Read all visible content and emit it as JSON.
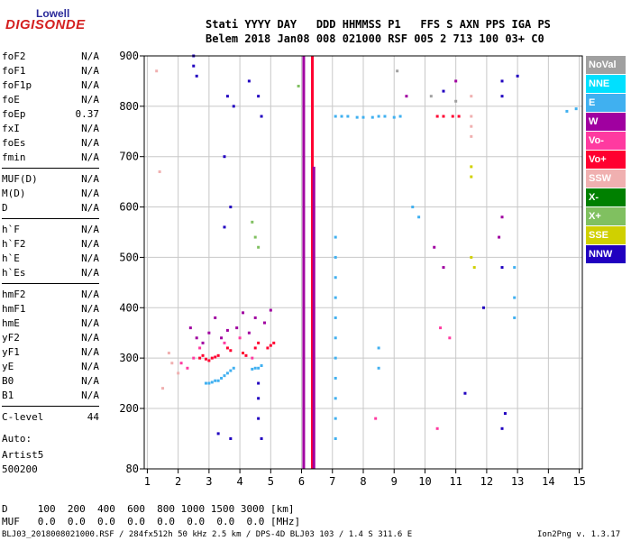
{
  "logo": {
    "line1": "Lowell",
    "line2": "DIGISONDE"
  },
  "header": {
    "line1": "Stati YYYY DAY   DDD HHMMSS P1   FFS S AXN PPS IGA PS",
    "line2": "Belem 2018 Jan08 008 021000 RSF 005 2 713 100 03+ C0"
  },
  "params": [
    {
      "name": "foF2",
      "value": "N/A"
    },
    {
      "name": "foF1",
      "value": "N/A"
    },
    {
      "name": "foF1p",
      "value": "N/A"
    },
    {
      "name": "foE",
      "value": "N/A"
    },
    {
      "name": "foEp",
      "value": "0.37"
    },
    {
      "name": "fxI",
      "value": "N/A"
    },
    {
      "name": "foEs",
      "value": "N/A"
    },
    {
      "name": "fmin",
      "value": "N/A"
    },
    {
      "name": "MUF(D)",
      "value": "N/A"
    },
    {
      "name": "M(D)",
      "value": "N/A"
    },
    {
      "name": "D",
      "value": "N/A"
    },
    {
      "name": "h`F",
      "value": "N/A"
    },
    {
      "name": "h`F2",
      "value": "N/A"
    },
    {
      "name": "h`E",
      "value": "N/A"
    },
    {
      "name": "h`Es",
      "value": "N/A"
    },
    {
      "name": "hmF2",
      "value": "N/A"
    },
    {
      "name": "hmF1",
      "value": "N/A"
    },
    {
      "name": "hmE",
      "value": "N/A"
    },
    {
      "name": "yF2",
      "value": "N/A"
    },
    {
      "name": "yF1",
      "value": "N/A"
    },
    {
      "name": "yE",
      "value": "N/A"
    },
    {
      "name": "B0",
      "value": "N/A"
    },
    {
      "name": "B1",
      "value": "N/A"
    },
    {
      "name": "C-level",
      "value": "44"
    }
  ],
  "auto": {
    "line1": "Auto:",
    "line2": "Artist5",
    "line3": "500200"
  },
  "legend": [
    {
      "label": "NoVal",
      "color": "#a0a0a0"
    },
    {
      "label": "NNE",
      "color": "#00e0ff"
    },
    {
      "label": "E",
      "color": "#40b0f0"
    },
    {
      "label": "W",
      "color": "#a000a0"
    },
    {
      "label": "Vo-",
      "color": "#ff3aa0"
    },
    {
      "label": "Vo+",
      "color": "#ff0030"
    },
    {
      "label": "SSW",
      "color": "#f0b0b0"
    },
    {
      "label": "X-",
      "color": "#008000"
    },
    {
      "label": "X+",
      "color": "#80c060"
    },
    {
      "label": "SSE",
      "color": "#d0d000"
    },
    {
      "label": "NNW",
      "color": "#2000c0"
    }
  ],
  "footer": {
    "d_row": "D     100  200  400  600  800 1000 1500 3000 [km]",
    "muf_row": "MUF   0.0  0.0  0.0  0.0  0.0  0.0  0.0  0.0 [MHz]",
    "info": "BLJ03_2018008021000.RSF / 284fx512h 50 kHz 2.5 km / DPS-4D BLJ03 103 / 1.4 S 311.6 E",
    "version": "Ion2Png v. 1.3.17"
  },
  "chart_data": {
    "type": "scatter",
    "xlabel": "",
    "ylabel": "",
    "x_ticks": [
      "1",
      "2",
      "3",
      "4",
      "5",
      "6",
      "7",
      "8",
      "9",
      "10",
      "11",
      "12",
      "13",
      "14",
      "15"
    ],
    "y_ticks": [
      "80",
      "200",
      "300",
      "400",
      "500",
      "600",
      "700",
      "800",
      "900"
    ],
    "xlim": [
      0.9,
      15.1
    ],
    "ylim": [
      80,
      900
    ],
    "grid": true,
    "lines": [
      {
        "name": "W",
        "x": 6.07,
        "y_from": 80,
        "y_to": 900
      },
      {
        "name": "Vo+",
        "x": 6.35,
        "y_from": 80,
        "y_to": 900
      },
      {
        "name": "W",
        "x": 6.4,
        "y_from": 80,
        "y_to": 680
      }
    ],
    "series": [
      {
        "name": "E",
        "points": [
          [
            2.9,
            250
          ],
          [
            3.0,
            250
          ],
          [
            3.1,
            252
          ],
          [
            3.2,
            255
          ],
          [
            3.3,
            255
          ],
          [
            3.4,
            260
          ],
          [
            3.5,
            265
          ],
          [
            3.6,
            270
          ],
          [
            3.7,
            275
          ],
          [
            3.8,
            280
          ],
          [
            4.4,
            278
          ],
          [
            4.5,
            280
          ],
          [
            4.6,
            280
          ],
          [
            4.7,
            285
          ],
          [
            7.1,
            780
          ],
          [
            7.3,
            780
          ],
          [
            7.5,
            780
          ],
          [
            7.8,
            778
          ],
          [
            8.0,
            778
          ],
          [
            8.3,
            778
          ],
          [
            8.5,
            780
          ],
          [
            8.7,
            780
          ],
          [
            9.0,
            778
          ],
          [
            9.2,
            780
          ],
          [
            14.6,
            790
          ],
          [
            14.9,
            795
          ],
          [
            7.1,
            540
          ],
          [
            7.1,
            500
          ],
          [
            7.1,
            460
          ],
          [
            7.1,
            420
          ],
          [
            7.1,
            380
          ],
          [
            7.1,
            340
          ],
          [
            7.1,
            300
          ],
          [
            7.1,
            260
          ],
          [
            7.1,
            220
          ],
          [
            7.1,
            180
          ],
          [
            7.1,
            140
          ],
          [
            12.9,
            480
          ],
          [
            12.9,
            420
          ],
          [
            12.9,
            380
          ],
          [
            8.5,
            320
          ],
          [
            8.5,
            280
          ],
          [
            9.6,
            600
          ],
          [
            9.8,
            580
          ]
        ]
      },
      {
        "name": "Vo+",
        "points": [
          [
            2.7,
            300
          ],
          [
            2.8,
            305
          ],
          [
            2.9,
            298
          ],
          [
            3.0,
            295
          ],
          [
            3.1,
            300
          ],
          [
            3.2,
            302
          ],
          [
            3.3,
            305
          ],
          [
            3.6,
            320
          ],
          [
            3.7,
            315
          ],
          [
            4.1,
            310
          ],
          [
            4.2,
            305
          ],
          [
            4.5,
            320
          ],
          [
            4.6,
            330
          ],
          [
            4.9,
            320
          ],
          [
            5.0,
            325
          ],
          [
            5.1,
            330
          ],
          [
            10.4,
            780
          ],
          [
            10.6,
            780
          ],
          [
            10.9,
            780
          ],
          [
            11.1,
            780
          ]
        ]
      },
      {
        "name": "W",
        "points": [
          [
            2.4,
            360
          ],
          [
            2.6,
            340
          ],
          [
            2.8,
            330
          ],
          [
            3.0,
            350
          ],
          [
            3.2,
            380
          ],
          [
            3.4,
            340
          ],
          [
            3.6,
            355
          ],
          [
            3.9,
            360
          ],
          [
            4.1,
            390
          ],
          [
            4.3,
            350
          ],
          [
            4.5,
            380
          ],
          [
            4.8,
            370
          ],
          [
            5.0,
            395
          ],
          [
            10.3,
            520
          ],
          [
            10.6,
            480
          ],
          [
            9.4,
            820
          ],
          [
            11.0,
            850
          ],
          [
            12.4,
            540
          ],
          [
            12.5,
            580
          ]
        ]
      },
      {
        "name": "Vo-",
        "points": [
          [
            2.1,
            290
          ],
          [
            2.3,
            280
          ],
          [
            2.5,
            300
          ],
          [
            2.7,
            320
          ],
          [
            3.5,
            330
          ],
          [
            4.0,
            340
          ],
          [
            4.4,
            300
          ],
          [
            10.8,
            340
          ],
          [
            10.5,
            360
          ],
          [
            8.4,
            180
          ],
          [
            10.4,
            160
          ]
        ]
      },
      {
        "name": "SSW",
        "points": [
          [
            1.7,
            310
          ],
          [
            1.8,
            290
          ],
          [
            2.0,
            270
          ],
          [
            1.5,
            240
          ],
          [
            1.3,
            870
          ],
          [
            1.4,
            670
          ],
          [
            11.5,
            780
          ],
          [
            11.5,
            760
          ],
          [
            11.5,
            740
          ],
          [
            11.5,
            820
          ]
        ]
      },
      {
        "name": "NNW",
        "points": [
          [
            2.5,
            900
          ],
          [
            2.5,
            880
          ],
          [
            2.6,
            860
          ],
          [
            3.6,
            820
          ],
          [
            3.8,
            800
          ],
          [
            3.5,
            700
          ],
          [
            4.3,
            850
          ],
          [
            4.6,
            820
          ],
          [
            4.7,
            780
          ],
          [
            3.7,
            600
          ],
          [
            3.5,
            560
          ],
          [
            4.6,
            250
          ],
          [
            4.6,
            220
          ],
          [
            4.6,
            180
          ],
          [
            4.7,
            140
          ],
          [
            3.7,
            140
          ],
          [
            3.3,
            150
          ],
          [
            12.5,
            850
          ],
          [
            12.5,
            820
          ],
          [
            12.5,
            160
          ],
          [
            12.6,
            190
          ],
          [
            11.9,
            400
          ],
          [
            13.0,
            860
          ],
          [
            11.3,
            230
          ],
          [
            10.6,
            830
          ],
          [
            12.5,
            480
          ]
        ]
      },
      {
        "name": "X+",
        "points": [
          [
            4.4,
            570
          ],
          [
            4.5,
            540
          ],
          [
            4.6,
            520
          ],
          [
            5.9,
            840
          ]
        ]
      },
      {
        "name": "SSE",
        "points": [
          [
            11.5,
            680
          ],
          [
            11.5,
            500
          ],
          [
            11.6,
            480
          ],
          [
            11.5,
            660
          ]
        ]
      },
      {
        "name": "NoVal",
        "points": [
          [
            9.1,
            870
          ],
          [
            10.2,
            820
          ],
          [
            11.0,
            810
          ]
        ]
      }
    ]
  }
}
